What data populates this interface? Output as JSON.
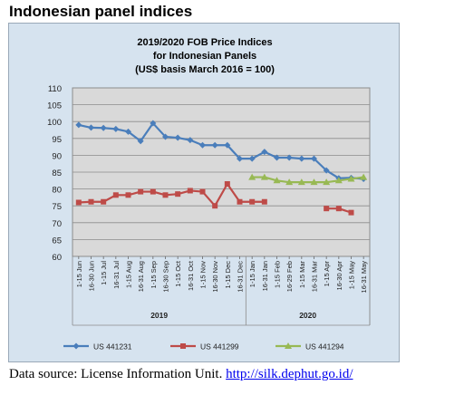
{
  "page": {
    "heading": "Indonesian panel indices",
    "source_prefix": "Data source: License Information Unit.",
    "source_link": "http://silk.dephut.go.id/"
  },
  "chart_data": {
    "type": "line",
    "title_lines": [
      "2019/2020 FOB Price Indices",
      "for Indonesian Panels",
      "(US$ basis March 2016 = 100)"
    ],
    "categories": [
      "1-15 Jun",
      "16-30 Jun",
      "1-15 Jul",
      "16-31 Jul",
      "1-15 Aug",
      "16-31 Aug",
      "1-15 Sep",
      "16-30 Sep",
      "1-15 Oct",
      "16-31 Oct",
      "1-15 Nov",
      "16-30 Nov",
      "1-15 Dec",
      "16-31 Dec",
      "1-15 Jan",
      "16-31 Jan",
      "1-15 Feb",
      "16-29 Feb",
      "1-15 Mar",
      "16-31 Mar",
      "1-15 Apr",
      "16-30 Apr",
      "1-15 May",
      "16-31 May"
    ],
    "year_groups": [
      {
        "label": "2019",
        "from": 0,
        "to": 13
      },
      {
        "label": "2020",
        "from": 14,
        "to": 23
      }
    ],
    "ylim": [
      60,
      110
    ],
    "yticks": [
      60,
      65,
      70,
      75,
      80,
      85,
      90,
      95,
      100,
      105,
      110
    ],
    "series": [
      {
        "name": "US 441231",
        "color": "#4a7ebb",
        "marker": "diamond",
        "values": [
          99,
          98.2,
          98.1,
          97.8,
          97,
          94.2,
          99.5,
          95.5,
          95.2,
          94.5,
          93,
          93,
          93,
          89,
          89,
          91,
          89.3,
          89.3,
          89,
          89,
          85.5,
          83.2,
          83.3,
          83
        ]
      },
      {
        "name": "US 441299",
        "color": "#be4b48",
        "marker": "square",
        "values": [
          76,
          76.2,
          76.2,
          78.2,
          78.2,
          79.2,
          79.2,
          78.2,
          78.5,
          79.5,
          79.2,
          75,
          81.5,
          76.2,
          76.2,
          76.2,
          null,
          null,
          null,
          null,
          74.2,
          74.2,
          73,
          null
        ]
      },
      {
        "name": "US 441294",
        "color": "#98b954",
        "marker": "triangle",
        "values": [
          null,
          null,
          null,
          null,
          null,
          null,
          null,
          null,
          null,
          null,
          null,
          null,
          null,
          null,
          83.5,
          83.5,
          82.5,
          82,
          82,
          82,
          82,
          82.5,
          83,
          83.5
        ]
      }
    ],
    "legend_position": "bottom",
    "grid": true
  }
}
